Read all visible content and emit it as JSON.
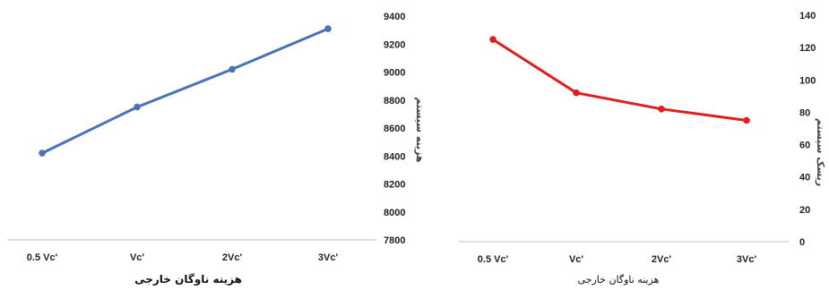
{
  "chart_data": [
    {
      "type": "line",
      "categories": [
        "0.5 Vc'",
        "Vc'",
        "2Vc'",
        "3Vc'"
      ],
      "series": [
        {
          "values": [
            8420,
            8750,
            9020,
            9310
          ],
          "color": "#4a73b5"
        }
      ],
      "xlabel": "هزینه ناوگان خارجی",
      "ylabel": "هزینه سیستم",
      "ylim": [
        7800,
        9400
      ],
      "yticks": [
        7800,
        8000,
        8200,
        8400,
        8600,
        8800,
        9000,
        9200,
        9400
      ],
      "yaxis_side": "right",
      "grid": false
    },
    {
      "type": "line",
      "categories": [
        "0.5 Vc'",
        "Vc'",
        "2Vc'",
        "3Vc'"
      ],
      "series": [
        {
          "values": [
            125,
            92,
            82,
            75
          ],
          "color": "#e01e1e"
        }
      ],
      "xlabel": "هزینه ناوگان خارجی",
      "ylabel": "ریسک سیستم",
      "ylim": [
        0,
        140
      ],
      "yticks": [
        0,
        20,
        40,
        60,
        80,
        100,
        120,
        140
      ],
      "yaxis_side": "right",
      "grid": false
    }
  ]
}
